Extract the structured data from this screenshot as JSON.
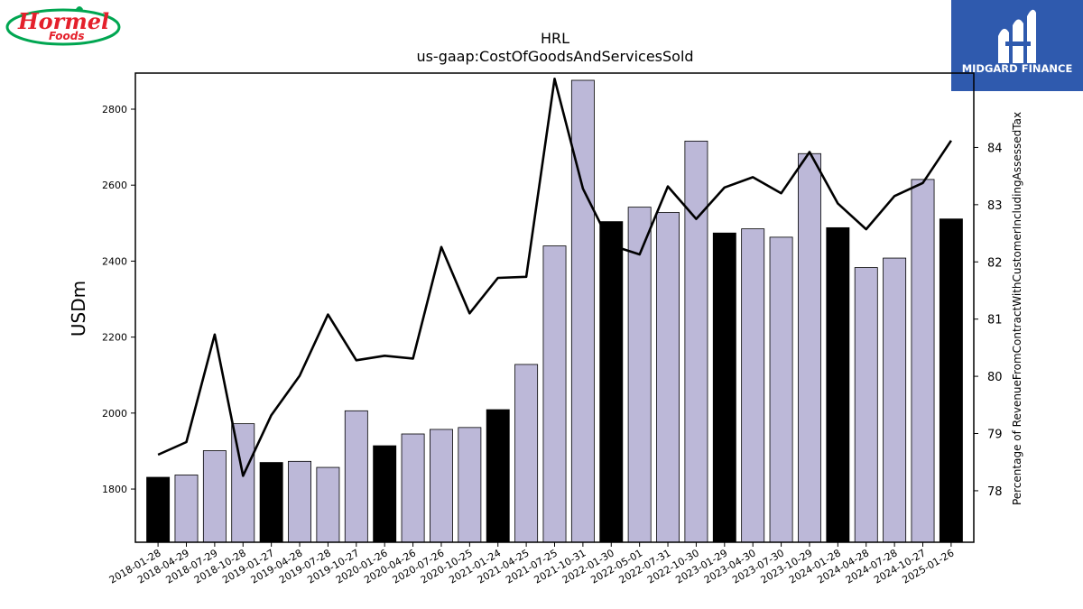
{
  "brand": {
    "left_logo_text": "Hormel",
    "left_logo_sub": "Foods",
    "right_logo_text": "MIDGARD FINANCE"
  },
  "colors": {
    "bar_quarter": "#bcb8d8",
    "bar_fiscal_q1": "#000000",
    "line": "#000000",
    "hormel_red": "#e4202b",
    "hormel_green": "#00a651",
    "midgard_blue": "#2f5aae"
  },
  "chart_data": {
    "type": "bar",
    "title": "HRL",
    "subtitle": "us-gaap:CostOfGoodsAndServicesSold",
    "ylabel": "USDm",
    "y2label": "Percentage of RevenueFromContractWithCustomerIncludingAssessedTax",
    "ylim": [
      1660,
      2895
    ],
    "y2lim": [
      77.1,
      85.3
    ],
    "yticks": [
      1800,
      2000,
      2200,
      2400,
      2600,
      2800
    ],
    "y2ticks": [
      78,
      79,
      80,
      81,
      82,
      83,
      84
    ],
    "categories": [
      "2018-01-28",
      "2018-04-29",
      "2018-07-29",
      "2018-10-28",
      "2019-01-27",
      "2019-04-28",
      "2019-07-28",
      "2019-10-27",
      "2020-01-26",
      "2020-04-26",
      "2020-07-26",
      "2020-10-25",
      "2021-01-24",
      "2021-04-25",
      "2021-07-25",
      "2021-10-31",
      "2022-01-30",
      "2022-05-01",
      "2022-07-31",
      "2022-10-30",
      "2023-01-29",
      "2023-04-30",
      "2023-07-30",
      "2023-10-29",
      "2024-01-28",
      "2024-04-28",
      "2024-07-28",
      "2024-10-27",
      "2025-01-26"
    ],
    "series": [
      {
        "type": "bar",
        "values": [
          1831,
          1837,
          1901,
          1972,
          1870,
          1873,
          1857,
          2006,
          1914,
          1945,
          1957,
          1962,
          2009,
          2128,
          2440,
          2876,
          2504,
          2542,
          2528,
          2716,
          2474,
          2485,
          2463,
          2683,
          2488,
          2383,
          2408,
          2615,
          2511
        ],
        "highlight": [
          true,
          false,
          false,
          false,
          true,
          false,
          false,
          false,
          true,
          false,
          false,
          false,
          true,
          false,
          false,
          false,
          true,
          false,
          false,
          false,
          true,
          false,
          false,
          false,
          true,
          false,
          false,
          false,
          true
        ]
      },
      {
        "type": "line",
        "axis": "right",
        "values": [
          78.63,
          78.85,
          80.73,
          78.26,
          79.32,
          80.01,
          81.08,
          80.28,
          80.36,
          80.31,
          82.26,
          81.1,
          81.72,
          81.74,
          85.2,
          83.28,
          82.29,
          82.13,
          83.32,
          82.75,
          83.3,
          83.48,
          83.2,
          83.92,
          83.02,
          82.57,
          83.15,
          83.38,
          84.12
        ]
      }
    ]
  }
}
